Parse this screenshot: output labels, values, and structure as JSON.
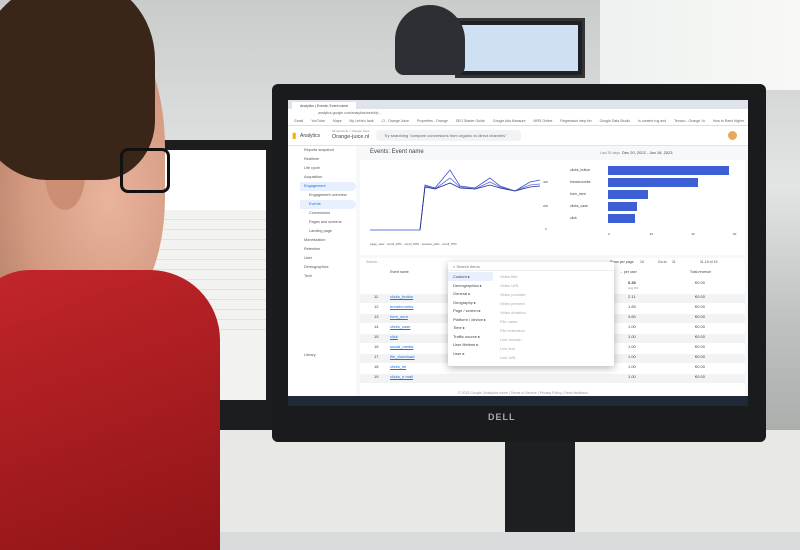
{
  "scene": {
    "monitor_brand": "DELL"
  },
  "browser": {
    "tab": "Analytics | Events: Event name",
    "url": "analytics.google.com/analytics/web/#/p...",
    "bookmarks": [
      "Gmail",
      "YouTube",
      "Maps",
      "My LeHa's fault",
      "CI - Orange Juice",
      "Properties - Orange",
      "SEO Starter Guide",
      "Google Ads Measure",
      "MRS Online",
      "Regression step fun",
      "Google Data Studio",
      "Is content rug and",
      "Tenaxo - Orange Ju",
      "How to Rank Higher"
    ]
  },
  "ga": {
    "app": "Analytics",
    "account_path": "All accounts > Orange Juice",
    "property": "Orange-juice.nl",
    "search_placeholder": "Try searching \"compare conversions from organic vs direct channels\"",
    "nav": [
      "Reports snapshot",
      "Realtime",
      "Life cycle",
      "Acquisition",
      "Engagement",
      "Engagement overview",
      "Events",
      "Conversions",
      "Pages and screens",
      "Landing page",
      "Monetization",
      "Retention",
      "User",
      "Demographics",
      "Tech",
      "Library"
    ],
    "report_title": "Events: Event name",
    "date_label": "Last 30 days",
    "date_range": "Dec 20, 2022 - Jan 18, 2023",
    "bar_chart": {
      "categories": [
        "clicks_button",
        "breadcrumbs",
        "form_sent",
        "clicks_case",
        "click"
      ],
      "values": [
        58,
        43,
        19,
        14,
        13
      ],
      "ticks": [
        "0",
        "20",
        "40",
        "60"
      ]
    },
    "line_legend": [
      "page_view",
      "scroll_25%",
      "scroll_50%",
      "session_start",
      "scroll_75%"
    ],
    "line_ticks": [
      "400",
      "200",
      "0"
    ],
    "table_search": "Search...",
    "rows_per_page_label": "Rows per page",
    "rows_per_page": "10",
    "goto_label": "Go to",
    "goto": "11",
    "pagination": "11-19 of 19",
    "columns": [
      "Event name",
      "... per user",
      "Total revenue"
    ],
    "total_row": {
      "per_user": "0.39",
      "per_user_sub": "Avg 0%",
      "revenue": "€0.00"
    },
    "rows": [
      {
        "n": "11",
        "name": "clicks_button",
        "per_user": "2.11",
        "revenue": "€0.00"
      },
      {
        "n": "12",
        "name": "breadcrumbs",
        "per_user": "1.83",
        "revenue": "€0.00"
      },
      {
        "n": "13",
        "name": "form_sent",
        "per_user": "3.60",
        "revenue": "€0.00"
      },
      {
        "n": "14",
        "name": "clicks_case",
        "per_user": "1.00",
        "revenue": "€0.00"
      },
      {
        "n": "15",
        "name": "click",
        "per_user": "1.00",
        "revenue": "€0.00"
      },
      {
        "n": "16",
        "name": "social_media",
        "per_user": "1.00",
        "revenue": "€0.00"
      },
      {
        "n": "17",
        "name": "file_download",
        "per_user": "1.00",
        "revenue": "€0.00"
      },
      {
        "n": "18",
        "name": "clicks_tel",
        "per_user": "1.00",
        "revenue": "€0.00"
      },
      {
        "n": "19",
        "name": "clicks_e-mail",
        "per_user": "1.00",
        "revenue": "€0.00"
      }
    ],
    "menu": {
      "search": "Search items",
      "categories": [
        "Custom",
        "Demographics",
        "General",
        "Geography",
        "Page / screen",
        "Platform / device",
        "Time",
        "Traffic source",
        "User lifetime",
        "User"
      ],
      "items": [
        "Video title",
        "Video URL",
        "Video provider",
        "Video percent",
        "Video duration",
        "File name",
        "File extension",
        "Link domain",
        "Link text",
        "Link URL"
      ]
    },
    "footer": "© 2023 Google | Analytics home | Terms of Service | Privacy Policy | Send feedback"
  }
}
